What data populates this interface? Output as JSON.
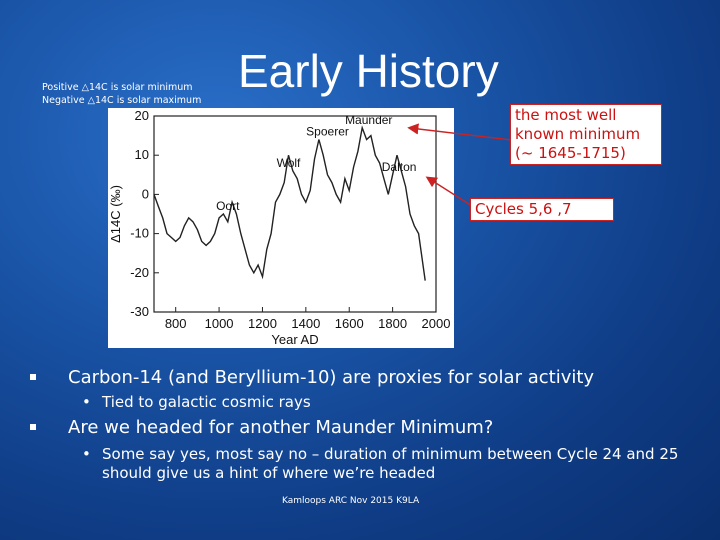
{
  "slide": {
    "title": "Early History",
    "note_line1": "Positive △14C is solar minimum",
    "note_line2": "Negative △14C is solar maximum",
    "callout_maunder": "the most well known minimum (~ 1645-1715)",
    "callout_cycles": "Cycles 5,6 ,7",
    "bullets": [
      {
        "text": "Carbon-14 (and Beryllium-10) are proxies for solar activity",
        "sub": "Tied to galactic cosmic rays"
      },
      {
        "text": "Are we headed for another Maunder Minimum?",
        "sub": "Some say yes, most say no – duration of minimum between Cycle 24 and 25 should give us a hint of where we’re headed"
      }
    ],
    "footer": "Kamloops ARC Nov 2015 K9LA",
    "sub_bullet_glyph": "•"
  },
  "chart_data": {
    "type": "line",
    "xlabel": "Year AD",
    "ylabel": "Δ14C (‰)",
    "xlim": [
      700,
      2000
    ],
    "ylim": [
      -30,
      20
    ],
    "xticks": [
      800,
      1000,
      1200,
      1400,
      1600,
      1800,
      2000
    ],
    "yticks": [
      20,
      10,
      0,
      -10,
      -20,
      -30
    ],
    "grid": false,
    "series": [
      {
        "x": [
          700,
          720,
          740,
          760,
          780,
          800,
          820,
          840,
          860,
          880,
          900,
          920,
          940,
          960,
          980,
          1000,
          1020,
          1040,
          1060,
          1080,
          1100,
          1120,
          1140,
          1160,
          1180,
          1200,
          1220,
          1240,
          1260,
          1280,
          1300,
          1320,
          1340,
          1360,
          1380,
          1400,
          1420,
          1440,
          1460,
          1480,
          1500,
          1520,
          1540,
          1560,
          1580,
          1600,
          1620,
          1640,
          1660,
          1680,
          1700,
          1720,
          1740,
          1760,
          1780,
          1800,
          1820,
          1840,
          1860,
          1880,
          1900,
          1920,
          1940,
          1950
        ],
        "y": [
          0,
          -3,
          -6,
          -10,
          -11,
          -12,
          -11,
          -8,
          -6,
          -7,
          -9,
          -12,
          -13,
          -12,
          -10,
          -6,
          -5,
          -7,
          -2,
          -5,
          -10,
          -14,
          -18,
          -20,
          -18,
          -21,
          -14,
          -10,
          -2,
          0,
          3,
          10,
          6,
          4,
          0,
          -2,
          1,
          9,
          14,
          10,
          5,
          3,
          0,
          -2,
          4,
          1,
          7,
          11,
          17,
          14,
          15,
          10,
          8,
          4,
          0,
          5,
          10,
          6,
          2,
          -5,
          -8,
          -10,
          -18,
          -22
        ]
      }
    ],
    "annotations": [
      {
        "label": "Oort",
        "x": 1040,
        "y": -4
      },
      {
        "label": "Wolf",
        "x": 1320,
        "y": 7
      },
      {
        "label": "Spoerer",
        "x": 1500,
        "y": 15
      },
      {
        "label": "Maunder",
        "x": 1690,
        "y": 18
      },
      {
        "label": "Dalton",
        "x": 1830,
        "y": 6
      }
    ],
    "line_color": "#222222"
  }
}
